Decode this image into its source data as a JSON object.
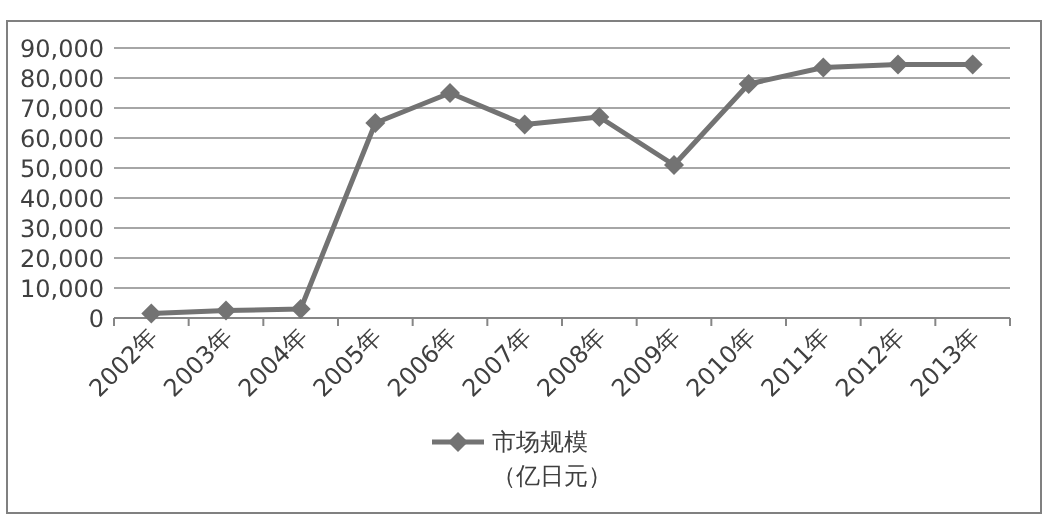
{
  "chart_data": {
    "type": "line",
    "categories": [
      "2002年",
      "2003年",
      "2004年",
      "2005年",
      "2006年",
      "2007年",
      "2008年",
      "2009年",
      "2010年",
      "2011年",
      "2012年",
      "2013年"
    ],
    "series": [
      {
        "name": "市场规模（亿日元）",
        "color": "#737373",
        "values": [
          1500,
          2500,
          3000,
          65000,
          75000,
          64500,
          67000,
          51000,
          78000,
          83500,
          84500,
          84500
        ]
      }
    ],
    "ylim": [
      0,
      90000
    ],
    "yticks": [
      {
        "value": 0,
        "label": "0"
      },
      {
        "value": 10000,
        "label": "10,000"
      },
      {
        "value": 20000,
        "label": "20,000"
      },
      {
        "value": 30000,
        "label": "30,000"
      },
      {
        "value": 40000,
        "label": "40,000"
      },
      {
        "value": 50000,
        "label": "50,000"
      },
      {
        "value": 60000,
        "label": "60,000"
      },
      {
        "value": 70000,
        "label": "70,000"
      },
      {
        "value": 80000,
        "label": "80,000"
      },
      {
        "value": 90000,
        "label": "90,000"
      }
    ],
    "grid": "y",
    "marker": "diamond",
    "line_style": "solid",
    "legend": "bottom"
  }
}
